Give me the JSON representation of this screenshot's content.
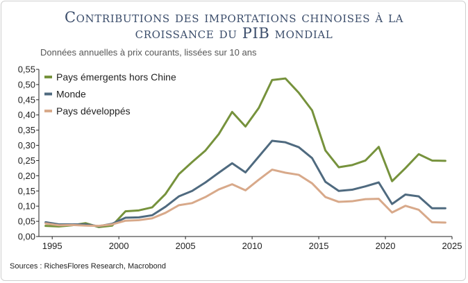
{
  "title_line1": "Contributions des importations chinoises à la",
  "title_line2": "croissance du PIB mondial",
  "subtitle": "Données annuelles à prix courants, lissées sur 10 ans",
  "source": "Sources : RichesFlores Research, Macrobond",
  "chart_data": {
    "type": "line",
    "title": "Contributions des importations chinoises à la croissance du PIB mondial",
    "subtitle": "Données annuelles à prix courants, lissées sur 10 ans",
    "xlabel": "",
    "ylabel": "",
    "xlim": [
      1994,
      2025
    ],
    "ylim": [
      0,
      0.55
    ],
    "xticks": [
      1995,
      2000,
      2005,
      2010,
      2015,
      2020,
      2025
    ],
    "yticks": [
      0,
      0.05,
      0.1,
      0.15,
      0.2,
      0.25,
      0.3,
      0.35,
      0.4,
      0.45,
      0.5,
      0.55
    ],
    "ytick_labels": [
      "0,00",
      "0,05",
      "0,10",
      "0,15",
      "0,20",
      "0,25",
      "0,30",
      "0,35",
      "0,40",
      "0,45",
      "0,50",
      "0,55"
    ],
    "grid": false,
    "legend_position": "top-left",
    "x": [
      1994.5,
      1995.5,
      1996.5,
      1997.5,
      1998.5,
      1999.5,
      2000.5,
      2001.5,
      2002.5,
      2003.5,
      2004.5,
      2005.5,
      2006.5,
      2007.5,
      2008.5,
      2009.5,
      2010.5,
      2011.5,
      2012.5,
      2013.5,
      2014.5,
      2015.5,
      2016.5,
      2017.5,
      2018.5,
      2019.5,
      2020.5,
      2021.5,
      2022.5,
      2023.5,
      2024.5
    ],
    "series": [
      {
        "name": "Pays émergents hors Chine",
        "color": "#76923c",
        "values": [
          0.035,
          0.033,
          0.037,
          0.044,
          0.031,
          0.036,
          0.083,
          0.086,
          0.096,
          0.14,
          0.205,
          0.245,
          0.283,
          0.337,
          0.41,
          0.362,
          0.423,
          0.515,
          0.52,
          0.473,
          0.415,
          0.283,
          0.228,
          0.235,
          0.25,
          0.295,
          0.182,
          0.225,
          0.271,
          0.25,
          0.249
        ]
      },
      {
        "name": "Monde",
        "color": "#4f6a7f",
        "values": [
          0.047,
          0.04,
          0.04,
          0.04,
          0.034,
          0.042,
          0.062,
          0.063,
          0.07,
          0.098,
          0.132,
          0.15,
          0.178,
          0.21,
          0.241,
          0.211,
          0.263,
          0.315,
          0.31,
          0.294,
          0.258,
          0.18,
          0.15,
          0.154,
          0.165,
          0.178,
          0.107,
          0.138,
          0.132,
          0.093,
          0.093
        ]
      },
      {
        "name": "Pays développés",
        "color": "#d8a98a",
        "values": [
          0.043,
          0.037,
          0.038,
          0.036,
          0.035,
          0.04,
          0.052,
          0.054,
          0.06,
          0.078,
          0.103,
          0.11,
          0.13,
          0.155,
          0.172,
          0.152,
          0.187,
          0.22,
          0.21,
          0.203,
          0.175,
          0.13,
          0.114,
          0.116,
          0.123,
          0.124,
          0.079,
          0.101,
          0.088,
          0.047,
          0.046
        ]
      }
    ]
  }
}
